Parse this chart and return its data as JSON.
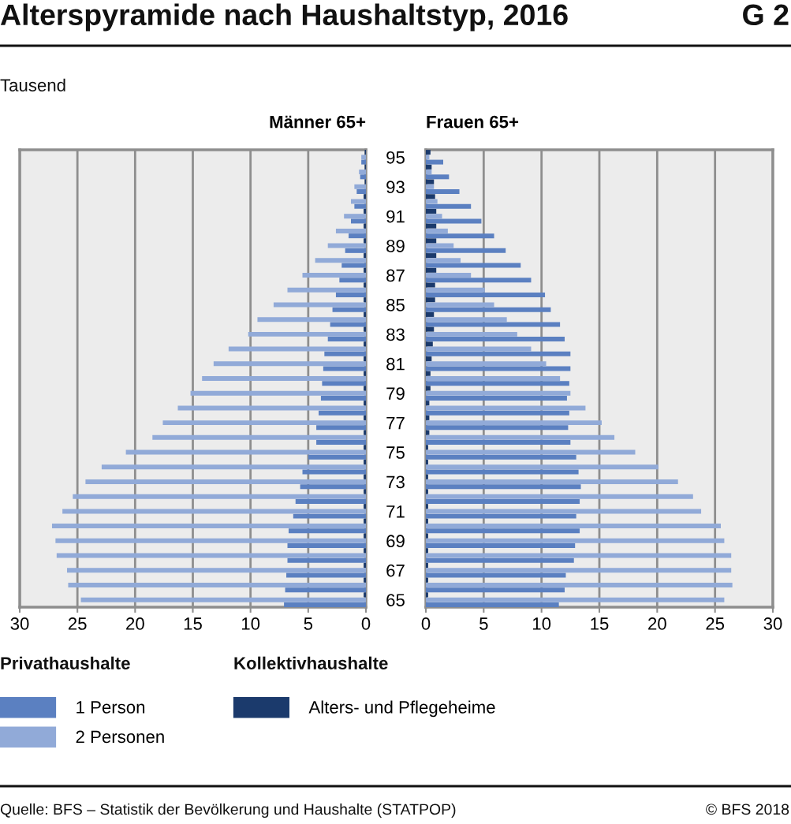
{
  "chart_data": [
    {
      "type": "bar",
      "orientation": "horizontal",
      "title": "Männer 65+",
      "categories": [
        "95",
        null,
        "93",
        null,
        "91",
        null,
        "89",
        null,
        "87",
        null,
        "85",
        null,
        "83",
        null,
        "81",
        null,
        "79",
        null,
        "77",
        null,
        "75",
        null,
        "73",
        null,
        "71",
        null,
        "69",
        null,
        "67",
        null,
        "65"
      ],
      "series": [
        {
          "name": "1 Person",
          "color": "#5b80c1",
          "values": [
            0.4,
            0.5,
            0.8,
            1.0,
            1.3,
            1.5,
            1.8,
            2.1,
            2.3,
            2.6,
            2.9,
            3.1,
            3.3,
            3.6,
            3.7,
            3.8,
            3.9,
            4.1,
            4.3,
            4.3,
            5.0,
            5.5,
            5.7,
            6.1,
            6.3,
            6.7,
            6.8,
            6.8,
            6.9,
            7.0,
            7.1
          ]
        },
        {
          "name": "2 Personen",
          "color": "#91aad8",
          "values": [
            0.4,
            0.6,
            1.0,
            1.3,
            1.9,
            2.6,
            3.3,
            4.4,
            5.5,
            6.8,
            8.0,
            9.4,
            10.2,
            11.9,
            13.2,
            14.2,
            15.2,
            16.3,
            17.6,
            18.5,
            20.8,
            22.9,
            24.3,
            25.4,
            26.3,
            27.2,
            26.9,
            26.8,
            25.9,
            25.8,
            24.7
          ]
        },
        {
          "name": "Alters- und Pflegeheime",
          "color": "#1b3a6c",
          "values": [
            0.1,
            0.1,
            0.1,
            0.2,
            0.2,
            0.2,
            0.2,
            0.2,
            0.2,
            0.2,
            0.2,
            0.2,
            0.2,
            0.2,
            0.2,
            0.2,
            0.2,
            0.2,
            0.2,
            0.2,
            0.2,
            0.2,
            0.2,
            0.2,
            0.2,
            0.2,
            0.2,
            0.2,
            0.2,
            0.2,
            0.2
          ]
        }
      ],
      "xlim": [
        30,
        0
      ],
      "xticks": [
        30,
        25,
        20,
        15,
        10,
        5,
        0
      ],
      "grid": "x",
      "legend": "bottom",
      "annotations": [
        "Alterspyramide nach Haushaltstyp, 2016",
        "G 2",
        "Tausend",
        "Privathaushalte",
        "Kollektivhaushalte",
        "Quelle: BFS – Statistik der Bevölkerung und Haushalte (STATPOP)",
        "© BFS 2018"
      ]
    },
    {
      "type": "bar",
      "orientation": "horizontal",
      "title": "Frauen 65+",
      "categories": [
        "95",
        null,
        "93",
        null,
        "91",
        null,
        "89",
        null,
        "87",
        null,
        "85",
        null,
        "83",
        null,
        "81",
        null,
        "79",
        null,
        "77",
        null,
        "75",
        null,
        "73",
        null,
        "71",
        null,
        "69",
        null,
        "67",
        null,
        "65"
      ],
      "series": [
        {
          "color": "#5b80c1",
          "values": [
            1.5,
            2.0,
            2.9,
            3.9,
            4.8,
            5.9,
            6.9,
            8.2,
            9.1,
            10.3,
            10.8,
            11.6,
            12.0,
            12.5,
            12.5,
            12.4,
            12.2,
            12.4,
            12.3,
            12.5,
            13.0,
            13.2,
            13.4,
            13.3,
            13.0,
            13.3,
            12.9,
            12.8,
            12.1,
            12.0,
            11.5
          ]
        },
        {
          "color": "#91aad8",
          "values": [
            0.3,
            0.5,
            0.7,
            1.0,
            1.4,
            1.9,
            2.4,
            3.0,
            3.9,
            5.1,
            5.9,
            7.0,
            7.9,
            9.1,
            10.4,
            11.6,
            12.5,
            13.8,
            15.2,
            16.3,
            18.1,
            20.1,
            21.8,
            23.1,
            23.8,
            25.5,
            25.8,
            26.4,
            26.4,
            26.5,
            25.8
          ]
        },
        {
          "color": "#1b3a6c",
          "values": [
            0.4,
            0.5,
            0.7,
            0.8,
            0.9,
            0.9,
            0.9,
            0.9,
            0.9,
            0.8,
            0.8,
            0.7,
            0.7,
            0.6,
            0.5,
            0.4,
            0.4,
            0.3,
            0.3,
            0.3,
            0.2,
            0.2,
            0.2,
            0.2,
            0.2,
            0.2,
            0.2,
            0.2,
            0.2,
            0.2,
            0.2
          ]
        }
      ],
      "xlim": [
        0,
        30
      ],
      "xticks": [
        0,
        5,
        10,
        15,
        20,
        25,
        30
      ],
      "grid": "x",
      "tick_labels": "x"
    }
  ]
}
